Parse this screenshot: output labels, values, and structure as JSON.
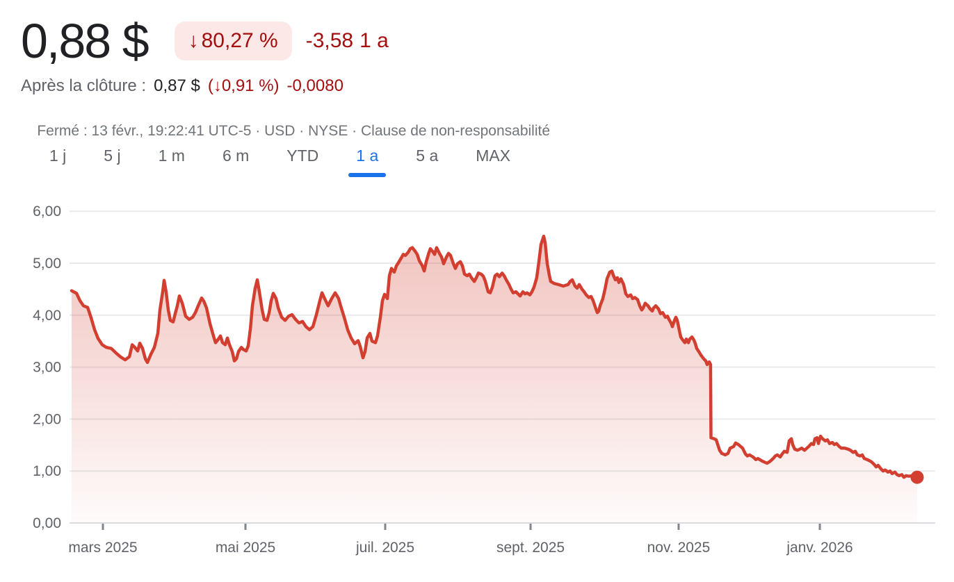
{
  "header": {
    "price": "0,88 $",
    "change_badge": {
      "arrow": "↓",
      "text": "80,27 %"
    },
    "change_abs": "-3,58",
    "change_period": "1 a",
    "after_hours": {
      "label": "Après la clôture :",
      "price": "0,87 $",
      "pct": "(↓0,91 %)",
      "abs": "-0,0080"
    },
    "status": {
      "text": "Fermé : 13 févr., 19:22:41 UTC-5 · USD · NYSE",
      "separator": " · ",
      "disclaimer": "Clause de non-responsabilité"
    }
  },
  "tabs": {
    "items": [
      {
        "id": "1j",
        "label": "1 j",
        "selected": false
      },
      {
        "id": "5j",
        "label": "5 j",
        "selected": false
      },
      {
        "id": "1m",
        "label": "1 m",
        "selected": false
      },
      {
        "id": "6m",
        "label": "6 m",
        "selected": false
      },
      {
        "id": "ytd",
        "label": "YTD",
        "selected": false
      },
      {
        "id": "1a",
        "label": "1 a",
        "selected": true
      },
      {
        "id": "5a",
        "label": "5 a",
        "selected": false
      },
      {
        "id": "max",
        "label": "MAX",
        "selected": false
      }
    ]
  },
  "chart_data": {
    "type": "area",
    "title": "",
    "xlabel": "",
    "ylabel": "",
    "currency": "USD",
    "period": "1 a",
    "grid": "horizontal",
    "series_color": "#d23f31",
    "negative_color": "#a50e0e",
    "last_value": 0.88,
    "y_range": [
      0,
      6
    ],
    "y_ticks": [
      {
        "value": 0,
        "label": "0,00"
      },
      {
        "value": 1,
        "label": "1,00"
      },
      {
        "value": 2,
        "label": "2,00"
      },
      {
        "value": 3,
        "label": "3,00"
      },
      {
        "value": 4,
        "label": "4,00"
      },
      {
        "value": 5,
        "label": "5,00"
      },
      {
        "value": 6,
        "label": "6,00"
      }
    ],
    "x_ticks": [
      {
        "f": 0.037,
        "label": "mars 2025"
      },
      {
        "f": 0.2056,
        "label": "mai 2025"
      },
      {
        "f": 0.3709,
        "label": "juil. 2025"
      },
      {
        "f": 0.5428,
        "label": "sept. 2025"
      },
      {
        "f": 0.7179,
        "label": "nov. 2025"
      },
      {
        "f": 0.8849,
        "label": "janv. 2026"
      }
    ],
    "points": [
      [
        0.0,
        4.47
      ],
      [
        0.0058,
        4.42
      ],
      [
        0.0099,
        4.28
      ],
      [
        0.014,
        4.18
      ],
      [
        0.0189,
        4.15
      ],
      [
        0.023,
        3.95
      ],
      [
        0.0271,
        3.72
      ],
      [
        0.0313,
        3.55
      ],
      [
        0.0362,
        3.43
      ],
      [
        0.0411,
        3.38
      ],
      [
        0.0469,
        3.36
      ],
      [
        0.0526,
        3.27
      ],
      [
        0.0576,
        3.2
      ],
      [
        0.0633,
        3.14
      ],
      [
        0.0683,
        3.2
      ],
      [
        0.0716,
        3.43
      ],
      [
        0.0748,
        3.38
      ],
      [
        0.0781,
        3.31
      ],
      [
        0.0806,
        3.46
      ],
      [
        0.0839,
        3.36
      ],
      [
        0.0872,
        3.16
      ],
      [
        0.0896,
        3.09
      ],
      [
        0.0938,
        3.25
      ],
      [
        0.0979,
        3.38
      ],
      [
        0.102,
        3.65
      ],
      [
        0.1044,
        4.1
      ],
      [
        0.1077,
        4.45
      ],
      [
        0.1094,
        4.67
      ],
      [
        0.1118,
        4.45
      ],
      [
        0.1143,
        4.1
      ],
      [
        0.1168,
        3.9
      ],
      [
        0.1201,
        3.87
      ],
      [
        0.1225,
        4.03
      ],
      [
        0.125,
        4.18
      ],
      [
        0.1275,
        4.37
      ],
      [
        0.1308,
        4.23
      ],
      [
        0.1349,
        3.98
      ],
      [
        0.139,
        3.92
      ],
      [
        0.1431,
        3.96
      ],
      [
        0.1464,
        4.05
      ],
      [
        0.1497,
        4.18
      ],
      [
        0.1538,
        4.33
      ],
      [
        0.1563,
        4.27
      ],
      [
        0.1595,
        4.14
      ],
      [
        0.1637,
        3.83
      ],
      [
        0.1678,
        3.6
      ],
      [
        0.1702,
        3.47
      ],
      [
        0.1727,
        3.52
      ],
      [
        0.176,
        3.6
      ],
      [
        0.1785,
        3.47
      ],
      [
        0.1817,
        3.43
      ],
      [
        0.1842,
        3.56
      ],
      [
        0.1867,
        3.43
      ],
      [
        0.19,
        3.3
      ],
      [
        0.1924,
        3.12
      ],
      [
        0.1949,
        3.16
      ],
      [
        0.1974,
        3.3
      ],
      [
        0.2007,
        3.38
      ],
      [
        0.2031,
        3.34
      ],
      [
        0.2064,
        3.31
      ],
      [
        0.2089,
        3.41
      ],
      [
        0.2114,
        3.74
      ],
      [
        0.2138,
        4.18
      ],
      [
        0.2171,
        4.52
      ],
      [
        0.2196,
        4.68
      ],
      [
        0.222,
        4.45
      ],
      [
        0.2253,
        4.1
      ],
      [
        0.2278,
        3.92
      ],
      [
        0.2311,
        3.9
      ],
      [
        0.2336,
        4.05
      ],
      [
        0.236,
        4.28
      ],
      [
        0.2385,
        4.42
      ],
      [
        0.2418,
        4.32
      ],
      [
        0.2443,
        4.14
      ],
      [
        0.2484,
        3.96
      ],
      [
        0.2525,
        3.9
      ],
      [
        0.2566,
        3.98
      ],
      [
        0.2607,
        4.01
      ],
      [
        0.2648,
        3.92
      ],
      [
        0.2689,
        3.85
      ],
      [
        0.273,
        3.88
      ],
      [
        0.2771,
        3.78
      ],
      [
        0.2813,
        3.72
      ],
      [
        0.2854,
        3.78
      ],
      [
        0.2895,
        4.01
      ],
      [
        0.2936,
        4.28
      ],
      [
        0.2961,
        4.43
      ],
      [
        0.2993,
        4.32
      ],
      [
        0.3034,
        4.18
      ],
      [
        0.3076,
        4.32
      ],
      [
        0.3117,
        4.43
      ],
      [
        0.3158,
        4.32
      ],
      [
        0.3182,
        4.18
      ],
      [
        0.3224,
        3.96
      ],
      [
        0.3265,
        3.72
      ],
      [
        0.3306,
        3.56
      ],
      [
        0.3347,
        3.45
      ],
      [
        0.3388,
        3.51
      ],
      [
        0.3413,
        3.4
      ],
      [
        0.3446,
        3.18
      ],
      [
        0.347,
        3.3
      ],
      [
        0.3495,
        3.56
      ],
      [
        0.3528,
        3.65
      ],
      [
        0.3553,
        3.5
      ],
      [
        0.3594,
        3.47
      ],
      [
        0.3618,
        3.6
      ],
      [
        0.3651,
        3.96
      ],
      [
        0.3676,
        4.28
      ],
      [
        0.3701,
        4.4
      ],
      [
        0.3734,
        4.32
      ],
      [
        0.3758,
        4.76
      ],
      [
        0.3783,
        4.9
      ],
      [
        0.3816,
        4.83
      ],
      [
        0.3841,
        4.95
      ],
      [
        0.3865,
        5.01
      ],
      [
        0.3898,
        5.1
      ],
      [
        0.3923,
        5.17
      ],
      [
        0.3947,
        5.15
      ],
      [
        0.398,
        5.21
      ],
      [
        0.4005,
        5.28
      ],
      [
        0.403,
        5.3
      ],
      [
        0.4063,
        5.23
      ],
      [
        0.4087,
        5.17
      ],
      [
        0.4112,
        5.05
      ],
      [
        0.4145,
        4.96
      ],
      [
        0.417,
        4.85
      ],
      [
        0.4194,
        5.03
      ],
      [
        0.4227,
        5.21
      ],
      [
        0.4243,
        5.28
      ],
      [
        0.4268,
        5.23
      ],
      [
        0.4293,
        5.17
      ],
      [
        0.4317,
        5.3
      ],
      [
        0.435,
        5.19
      ],
      [
        0.4375,
        5.12
      ],
      [
        0.44,
        4.99
      ],
      [
        0.4433,
        5.12
      ],
      [
        0.4457,
        5.19
      ],
      [
        0.4482,
        5.15
      ],
      [
        0.4515,
        4.99
      ],
      [
        0.4539,
        4.9
      ],
      [
        0.4564,
        4.99
      ],
      [
        0.4597,
        5.03
      ],
      [
        0.4622,
        4.95
      ],
      [
        0.4646,
        4.79
      ],
      [
        0.4679,
        4.76
      ],
      [
        0.4704,
        4.79
      ],
      [
        0.4729,
        4.72
      ],
      [
        0.4762,
        4.65
      ],
      [
        0.4786,
        4.72
      ],
      [
        0.4811,
        4.81
      ],
      [
        0.4844,
        4.79
      ],
      [
        0.4869,
        4.75
      ],
      [
        0.4893,
        4.65
      ],
      [
        0.4926,
        4.45
      ],
      [
        0.4951,
        4.43
      ],
      [
        0.4976,
        4.54
      ],
      [
        0.5008,
        4.76
      ],
      [
        0.5033,
        4.79
      ],
      [
        0.5058,
        4.74
      ],
      [
        0.5091,
        4.81
      ],
      [
        0.5115,
        4.76
      ],
      [
        0.514,
        4.68
      ],
      [
        0.5173,
        4.59
      ],
      [
        0.5197,
        4.5
      ],
      [
        0.5222,
        4.43
      ],
      [
        0.5255,
        4.45
      ],
      [
        0.528,
        4.41
      ],
      [
        0.5304,
        4.37
      ],
      [
        0.5337,
        4.45
      ],
      [
        0.5362,
        4.41
      ],
      [
        0.5386,
        4.43
      ],
      [
        0.5419,
        4.39
      ],
      [
        0.5444,
        4.45
      ],
      [
        0.5469,
        4.54
      ],
      [
        0.5501,
        4.72
      ],
      [
        0.5526,
        5.03
      ],
      [
        0.5551,
        5.36
      ],
      [
        0.5584,
        5.52
      ],
      [
        0.56,
        5.39
      ],
      [
        0.5625,
        4.99
      ],
      [
        0.565,
        4.77
      ],
      [
        0.5666,
        4.65
      ],
      [
        0.5707,
        4.61
      ],
      [
        0.5757,
        4.59
      ],
      [
        0.5814,
        4.56
      ],
      [
        0.5872,
        4.59
      ],
      [
        0.5896,
        4.65
      ],
      [
        0.5921,
        4.68
      ],
      [
        0.5954,
        4.56
      ],
      [
        0.5979,
        4.52
      ],
      [
        0.6003,
        4.59
      ],
      [
        0.6036,
        4.5
      ],
      [
        0.6061,
        4.45
      ],
      [
        0.6086,
        4.39
      ],
      [
        0.6118,
        4.34
      ],
      [
        0.6143,
        4.36
      ],
      [
        0.6168,
        4.28
      ],
      [
        0.6201,
        4.12
      ],
      [
        0.6217,
        4.05
      ],
      [
        0.6234,
        4.08
      ],
      [
        0.625,
        4.18
      ],
      [
        0.6283,
        4.32
      ],
      [
        0.6308,
        4.5
      ],
      [
        0.6332,
        4.7
      ],
      [
        0.6365,
        4.83
      ],
      [
        0.639,
        4.85
      ],
      [
        0.6406,
        4.77
      ],
      [
        0.6431,
        4.68
      ],
      [
        0.6455,
        4.72
      ],
      [
        0.6472,
        4.63
      ],
      [
        0.6497,
        4.7
      ],
      [
        0.6529,
        4.59
      ],
      [
        0.6554,
        4.41
      ],
      [
        0.6579,
        4.36
      ],
      [
        0.6612,
        4.39
      ],
      [
        0.6636,
        4.32
      ],
      [
        0.6661,
        4.34
      ],
      [
        0.6694,
        4.3
      ],
      [
        0.6719,
        4.18
      ],
      [
        0.6743,
        4.1
      ],
      [
        0.676,
        4.14
      ],
      [
        0.6784,
        4.23
      ],
      [
        0.6817,
        4.18
      ],
      [
        0.6842,
        4.12
      ],
      [
        0.6867,
        4.08
      ],
      [
        0.6883,
        4.14
      ],
      [
        0.6908,
        4.18
      ],
      [
        0.6941,
        4.12
      ],
      [
        0.6965,
        4.03
      ],
      [
        0.699,
        4.05
      ],
      [
        0.7023,
        3.96
      ],
      [
        0.7048,
        3.98
      ],
      [
        0.7064,
        3.92
      ],
      [
        0.7089,
        3.85
      ],
      [
        0.7105,
        3.78
      ],
      [
        0.713,
        3.9
      ],
      [
        0.7146,
        3.96
      ],
      [
        0.7163,
        3.9
      ],
      [
        0.7188,
        3.7
      ],
      [
        0.7204,
        3.58
      ],
      [
        0.7229,
        3.52
      ],
      [
        0.7253,
        3.47
      ],
      [
        0.727,
        3.54
      ],
      [
        0.7294,
        3.47
      ],
      [
        0.7311,
        3.54
      ],
      [
        0.7336,
        3.58
      ],
      [
        0.736,
        3.52
      ],
      [
        0.7377,
        3.45
      ],
      [
        0.7393,
        3.36
      ],
      [
        0.7418,
        3.3
      ],
      [
        0.7443,
        3.23
      ],
      [
        0.7475,
        3.16
      ],
      [
        0.75,
        3.12
      ],
      [
        0.7516,
        3.05
      ],
      [
        0.7541,
        3.1
      ],
      [
        0.7557,
        3.05
      ],
      [
        0.7562,
        1.64
      ],
      [
        0.7599,
        1.62
      ],
      [
        0.7623,
        1.6
      ],
      [
        0.7664,
        1.4
      ],
      [
        0.7689,
        1.34
      ],
      [
        0.773,
        1.31
      ],
      [
        0.7763,
        1.34
      ],
      [
        0.7788,
        1.44
      ],
      [
        0.7829,
        1.47
      ],
      [
        0.7853,
        1.54
      ],
      [
        0.7886,
        1.51
      ],
      [
        0.7936,
        1.44
      ],
      [
        0.7969,
        1.33
      ],
      [
        0.7993,
        1.29
      ],
      [
        0.8018,
        1.31
      ],
      [
        0.8059,
        1.27
      ],
      [
        0.8092,
        1.22
      ],
      [
        0.8117,
        1.24
      ],
      [
        0.8158,
        1.2
      ],
      [
        0.8182,
        1.18
      ],
      [
        0.8224,
        1.15
      ],
      [
        0.8256,
        1.18
      ],
      [
        0.8298,
        1.24
      ],
      [
        0.8322,
        1.29
      ],
      [
        0.8347,
        1.31
      ],
      [
        0.838,
        1.27
      ],
      [
        0.8405,
        1.33
      ],
      [
        0.8429,
        1.38
      ],
      [
        0.8462,
        1.36
      ],
      [
        0.8487,
        1.58
      ],
      [
        0.8512,
        1.62
      ],
      [
        0.8528,
        1.51
      ],
      [
        0.8553,
        1.42
      ],
      [
        0.8586,
        1.4
      ],
      [
        0.8611,
        1.42
      ],
      [
        0.8635,
        1.44
      ],
      [
        0.8668,
        1.4
      ],
      [
        0.8717,
        1.47
      ],
      [
        0.875,
        1.53
      ],
      [
        0.8775,
        1.51
      ],
      [
        0.8791,
        1.62
      ],
      [
        0.8816,
        1.64
      ],
      [
        0.8832,
        1.53
      ],
      [
        0.8857,
        1.67
      ],
      [
        0.8882,
        1.62
      ],
      [
        0.8914,
        1.58
      ],
      [
        0.8939,
        1.6
      ],
      [
        0.8964,
        1.53
      ],
      [
        0.8997,
        1.55
      ],
      [
        0.9021,
        1.51
      ],
      [
        0.9046,
        1.53
      ],
      [
        0.9079,
        1.47
      ],
      [
        0.9104,
        1.44
      ],
      [
        0.9145,
        1.44
      ],
      [
        0.9186,
        1.42
      ],
      [
        0.9211,
        1.4
      ],
      [
        0.9243,
        1.36
      ],
      [
        0.9268,
        1.38
      ],
      [
        0.9293,
        1.31
      ],
      [
        0.9326,
        1.29
      ],
      [
        0.935,
        1.31
      ],
      [
        0.9375,
        1.24
      ],
      [
        0.9408,
        1.22
      ],
      [
        0.9433,
        1.2
      ],
      [
        0.9457,
        1.18
      ],
      [
        0.949,
        1.13
      ],
      [
        0.9515,
        1.08
      ],
      [
        0.9539,
        1.11
      ],
      [
        0.9572,
        1.04
      ],
      [
        0.9597,
        1.0
      ],
      [
        0.9622,
        1.02
      ],
      [
        0.9655,
        0.98
      ],
      [
        0.9679,
        1.0
      ],
      [
        0.9704,
        0.95
      ],
      [
        0.9737,
        0.98
      ],
      [
        0.9762,
        0.93
      ],
      [
        0.9786,
        0.91
      ],
      [
        0.9819,
        0.93
      ],
      [
        0.9844,
        0.88
      ],
      [
        0.9869,
        0.91
      ],
      [
        0.9902,
        0.9
      ],
      [
        0.9951,
        0.91
      ],
      [
        1.0,
        0.88
      ]
    ]
  }
}
